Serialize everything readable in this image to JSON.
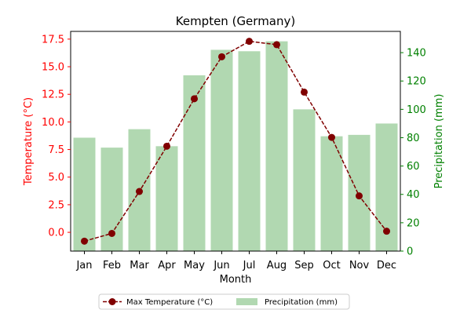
{
  "chart_data": {
    "type": "bar+line",
    "title": "Kempten (Germany)",
    "xlabel": "Month",
    "categories": [
      "Jan",
      "Feb",
      "Mar",
      "Apr",
      "May",
      "Jun",
      "Jul",
      "Aug",
      "Sep",
      "Oct",
      "Nov",
      "Dec"
    ],
    "y_left": {
      "label": "Temperature (°C)",
      "range": [
        -1.7,
        18.2
      ],
      "ticks": [
        0.0,
        2.5,
        5.0,
        7.5,
        10.0,
        12.5,
        15.0,
        17.5
      ],
      "tick_labels": [
        "0.0",
        "2.5",
        "5.0",
        "7.5",
        "10.0",
        "12.5",
        "15.0",
        "17.5"
      ],
      "color": "#ff0000"
    },
    "y_right": {
      "label": "Precipitation (mm)",
      "range": [
        0,
        155
      ],
      "ticks": [
        0,
        20,
        40,
        60,
        80,
        100,
        120,
        140
      ],
      "tick_labels": [
        "0",
        "20",
        "40",
        "60",
        "80",
        "100",
        "120",
        "140"
      ],
      "color": "#008000"
    },
    "series": [
      {
        "name": "Max Temperature (°C)",
        "type": "line",
        "axis": "left",
        "color": "#800000",
        "values": [
          -0.8,
          -0.1,
          3.7,
          7.8,
          12.1,
          15.9,
          17.3,
          17.0,
          12.7,
          8.6,
          3.3,
          0.1
        ]
      },
      {
        "name": "Precipitation (mm)",
        "type": "bar",
        "axis": "right",
        "color": "#b1d8b1",
        "values": [
          80,
          73,
          86,
          74,
          124,
          142,
          141,
          148,
          100,
          81,
          82,
          90
        ]
      }
    ],
    "legend_position": "bottom-center"
  }
}
